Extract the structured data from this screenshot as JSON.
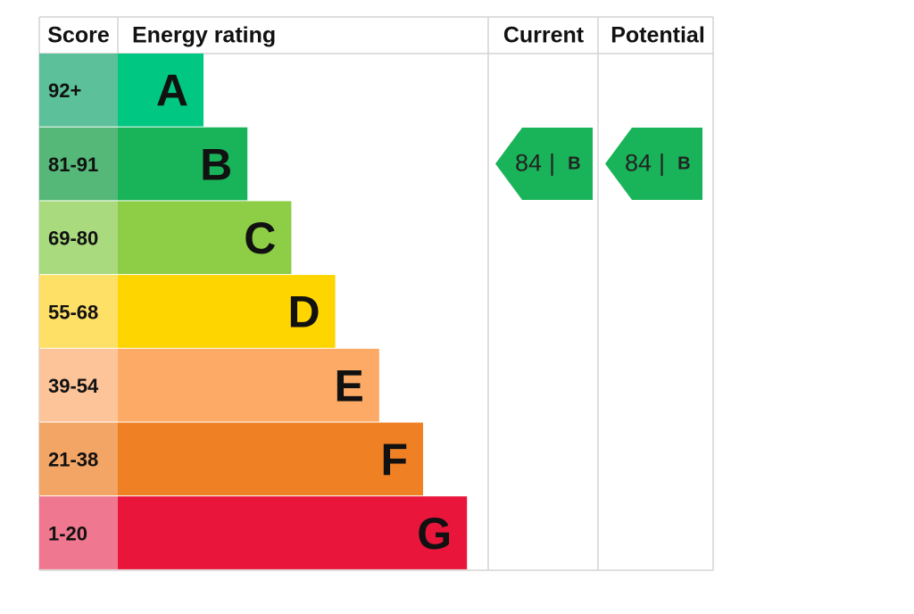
{
  "header": {
    "score": "Score",
    "energy_rating": "Energy rating",
    "current": "Current",
    "potential": "Potential"
  },
  "rows": [
    {
      "score": "92+",
      "rating": "A"
    },
    {
      "score": "81-91",
      "rating": "B"
    },
    {
      "score": "69-80",
      "rating": "C"
    },
    {
      "score": "55-68",
      "rating": "D"
    },
    {
      "score": "39-54",
      "rating": "E"
    },
    {
      "score": "21-38",
      "rating": "F"
    },
    {
      "score": "1-20",
      "rating": "G"
    }
  ],
  "current": {
    "score": 84,
    "separator": "|",
    "rating": "B"
  },
  "potential": {
    "score": 84,
    "separator": "|",
    "rating": "B"
  }
}
